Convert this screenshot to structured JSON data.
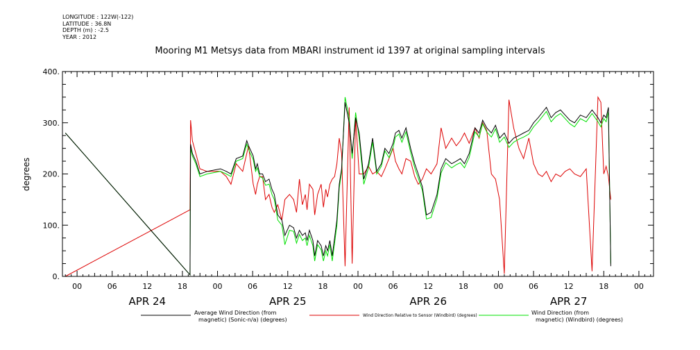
{
  "meta": {
    "longitude": "LONGITUDE : 122W(-122)",
    "latitude": "LATITUDE : 36.8N",
    "depth": "DEPTH (m) : -2.5",
    "year": "YEAR : 2012"
  },
  "chart_data": {
    "type": "line",
    "title": "Mooring M1 Metsys data from MBARI instrument id 1397 at original sampling intervals",
    "ylabel": "degrees",
    "xlabel": "",
    "ylim": [
      0,
      400
    ],
    "y_ticks": [
      "0.",
      "100.",
      "200.",
      "300.",
      "400."
    ],
    "x_unit": "hours from 2012-04-24 00:00",
    "xlim": [
      -2.5,
      98.5
    ],
    "x_ticks": [
      {
        "x": 0,
        "label": "00"
      },
      {
        "x": 6,
        "label": "06"
      },
      {
        "x": 12,
        "label": "12"
      },
      {
        "x": 18,
        "label": "18"
      },
      {
        "x": 24,
        "label": "00"
      },
      {
        "x": 30,
        "label": "06"
      },
      {
        "x": 36,
        "label": "12"
      },
      {
        "x": 42,
        "label": "18"
      },
      {
        "x": 48,
        "label": "00"
      },
      {
        "x": 54,
        "label": "06"
      },
      {
        "x": 60,
        "label": "12"
      },
      {
        "x": 66,
        "label": "18"
      },
      {
        "x": 72,
        "label": "00"
      },
      {
        "x": 78,
        "label": "06"
      },
      {
        "x": 84,
        "label": "12"
      },
      {
        "x": 90,
        "label": "18"
      },
      {
        "x": 96,
        "label": "00"
      }
    ],
    "day_labels": [
      {
        "x": 12,
        "label": "APR 24"
      },
      {
        "x": 36,
        "label": "APR 25"
      },
      {
        "x": 60,
        "label": "APR 26"
      },
      {
        "x": 84,
        "label": "APR 27"
      }
    ],
    "grid": false,
    "legend_placement": "bottom",
    "series": [
      {
        "name": "Average Wind Direction (from magnetic) (Sonic-n/a) (degrees)",
        "legend_line1": "Average Wind Direction (from",
        "legend_line2": "magnetic) (Sonic-n/a) (degrees)",
        "color": "#000000",
        "x": [
          -2,
          19.3,
          19.4,
          19.7,
          20.3,
          21,
          22.2,
          24.5,
          25.5,
          26.3,
          27.2,
          28.3,
          29,
          29.3,
          30.1,
          30.5,
          30.8,
          31.2,
          31.7,
          32.2,
          32.8,
          33.3,
          33.7,
          34.3,
          35,
          35.5,
          36.3,
          37,
          37.5,
          38,
          38.5,
          39,
          39.3,
          39.7,
          40.3,
          40.6,
          41.1,
          41.7,
          42.1,
          42.5,
          42.8,
          43.2,
          43.6,
          44,
          44.4,
          44.8,
          45.2,
          45.8,
          46.5,
          47,
          47.6,
          48.2,
          49,
          49.8,
          50.5,
          51.2,
          52,
          52.6,
          53.3,
          54,
          54.4,
          55,
          55.5,
          56.2,
          57,
          57.7,
          58.3,
          59,
          59.7,
          60.5,
          61.5,
          62.2,
          63,
          64,
          64.8,
          65.5,
          66.2,
          67,
          68,
          68.7,
          69.3,
          70,
          70.8,
          71.5,
          72.2,
          73,
          73.8,
          74.6,
          75.5,
          76.3,
          77.2,
          78,
          78.8,
          79.5,
          80.2,
          81,
          81.8,
          82.6,
          83.4,
          84.2,
          85,
          86,
          87,
          88,
          89,
          89.5,
          90,
          90.4,
          90.8,
          91.2
        ],
        "y": [
          280,
          3,
          258,
          240,
          225,
          200,
          205,
          210,
          205,
          200,
          230,
          235,
          265,
          255,
          235,
          210,
          220,
          200,
          200,
          185,
          190,
          170,
          160,
          120,
          110,
          80,
          100,
          95,
          75,
          90,
          80,
          85,
          70,
          90,
          70,
          40,
          70,
          60,
          40,
          60,
          50,
          70,
          40,
          75,
          110,
          180,
          210,
          340,
          300,
          240,
          310,
          280,
          190,
          220,
          270,
          205,
          220,
          250,
          240,
          260,
          280,
          285,
          270,
          290,
          250,
          220,
          200,
          175,
          120,
          125,
          160,
          210,
          230,
          220,
          225,
          230,
          220,
          240,
          290,
          280,
          305,
          290,
          280,
          295,
          270,
          280,
          260,
          270,
          275,
          280,
          285,
          300,
          310,
          320,
          330,
          310,
          320,
          325,
          315,
          305,
          300,
          315,
          310,
          325,
          310,
          300,
          315,
          310,
          330,
          20
        ]
      },
      {
        "name": "Wind Direction Relative to Sensor (Windbird) (degrees)",
        "legend_line1": "Wind Direction Relative to Sensor (Windbird) (degrees)",
        "legend_line2": "",
        "color": "#dd0000",
        "x": [
          -2,
          19.3,
          19.4,
          19.7,
          20.3,
          21,
          22.2,
          24.5,
          25.5,
          26.3,
          27.2,
          28.3,
          29,
          29.3,
          30.1,
          30.5,
          30.8,
          31.2,
          31.7,
          32.2,
          32.8,
          33.3,
          33.7,
          34.3,
          35,
          35.5,
          36.3,
          37,
          37.5,
          38,
          38.5,
          39,
          39.3,
          39.7,
          40.3,
          40.6,
          41.1,
          41.7,
          42.1,
          42.5,
          42.8,
          43.2,
          43.6,
          44,
          44.4,
          44.8,
          45.2,
          45.8,
          46.5,
          47,
          47.6,
          48.2,
          49,
          49.8,
          50.5,
          51.2,
          52,
          52.6,
          53.3,
          54,
          54.4,
          55,
          55.5,
          56.2,
          57,
          57.7,
          58.3,
          59,
          59.7,
          60.5,
          61.5,
          62.2,
          63,
          64,
          64.8,
          65.5,
          66.2,
          67,
          68,
          68.7,
          69.3,
          70,
          70.8,
          71.5,
          72.2,
          73,
          73.8,
          74.6,
          75.5,
          76.3,
          77.2,
          78,
          78.8,
          79.5,
          80.2,
          81,
          81.8,
          82.6,
          83.4,
          84.2,
          85,
          86,
          87,
          88,
          89,
          89.5,
          90,
          90.4,
          90.8,
          91.2
        ],
        "y": [
          0,
          130,
          305,
          265,
          240,
          210,
          205,
          205,
          195,
          180,
          220,
          205,
          240,
          255,
          180,
          160,
          180,
          195,
          195,
          150,
          160,
          135,
          125,
          140,
          110,
          150,
          160,
          150,
          125,
          190,
          140,
          160,
          130,
          180,
          170,
          120,
          160,
          180,
          135,
          170,
          155,
          180,
          190,
          195,
          220,
          270,
          240,
          20,
          330,
          25,
          310,
          200,
          200,
          215,
          200,
          205,
          195,
          210,
          230,
          250,
          225,
          210,
          200,
          230,
          225,
          195,
          180,
          190,
          210,
          200,
          220,
          290,
          250,
          270,
          255,
          265,
          280,
          260,
          290,
          270,
          300,
          285,
          200,
          190,
          150,
          5,
          345,
          290,
          250,
          230,
          270,
          220,
          200,
          195,
          205,
          185,
          200,
          195,
          205,
          210,
          200,
          195,
          210,
          10,
          350,
          340,
          200,
          215,
          195,
          150
        ]
      },
      {
        "name": "Wind Direction (from magnetic) (Windbird) (degrees)",
        "legend_line1": "Wind Direction (from",
        "legend_line2": "magnetic) (Windbird) (degrees)",
        "color": "#00e000",
        "x": [
          -2,
          19.3,
          19.4,
          19.7,
          20.3,
          21,
          22.2,
          24.5,
          25.5,
          26.3,
          27.2,
          28.3,
          29,
          29.3,
          30.1,
          30.5,
          30.8,
          31.2,
          31.7,
          32.2,
          32.8,
          33.3,
          33.7,
          34.3,
          35,
          35.5,
          36.3,
          37,
          37.5,
          38,
          38.5,
          39,
          39.3,
          39.7,
          40.3,
          40.6,
          41.1,
          41.7,
          42.1,
          42.5,
          42.8,
          43.2,
          43.6,
          44,
          44.4,
          44.8,
          45.2,
          45.8,
          46.5,
          47,
          47.6,
          48.2,
          49,
          49.8,
          50.5,
          51.2,
          52,
          52.6,
          53.3,
          54,
          54.4,
          55,
          55.5,
          56.2,
          57,
          57.7,
          58.3,
          59,
          59.7,
          60.5,
          61.5,
          62.2,
          63,
          64,
          64.8,
          65.5,
          66.2,
          67,
          68,
          68.7,
          69.3,
          70,
          70.8,
          71.5,
          72.2,
          73,
          73.8,
          74.6,
          75.5,
          76.3,
          77.2,
          78,
          78.8,
          79.5,
          80.2,
          81,
          81.8,
          82.6,
          83.4,
          84.2,
          85,
          86,
          87,
          88,
          89,
          89.5,
          90,
          90.4,
          90.8,
          91.2
        ],
        "y": [
          280,
          3,
          250,
          235,
          220,
          195,
          200,
          205,
          200,
          195,
          225,
          230,
          258,
          248,
          228,
          205,
          212,
          195,
          192,
          178,
          180,
          160,
          150,
          110,
          100,
          62,
          90,
          88,
          65,
          82,
          70,
          75,
          60,
          80,
          60,
          30,
          62,
          52,
          30,
          50,
          40,
          62,
          30,
          65,
          100,
          172,
          205,
          350,
          310,
          230,
          320,
          270,
          180,
          212,
          262,
          200,
          215,
          245,
          232,
          252,
          272,
          278,
          262,
          282,
          242,
          212,
          192,
          168,
          112,
          115,
          152,
          202,
          222,
          212,
          218,
          222,
          212,
          232,
          282,
          272,
          298,
          282,
          272,
          288,
          262,
          272,
          252,
          262,
          268,
          272,
          278,
          292,
          302,
          312,
          322,
          302,
          312,
          318,
          308,
          298,
          292,
          308,
          302,
          318,
          302,
          292,
          308,
          302,
          322,
          25
        ]
      }
    ]
  }
}
